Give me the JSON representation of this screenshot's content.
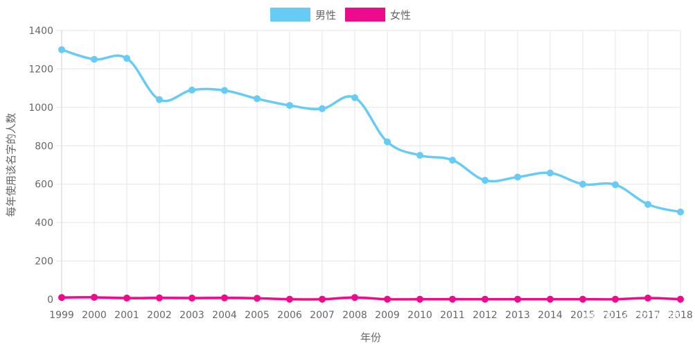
{
  "chart_data": {
    "type": "line",
    "title": "",
    "xlabel": "年份",
    "ylabel": "每年使用该名字的人数",
    "categories": [
      "1999",
      "2000",
      "2001",
      "2002",
      "2003",
      "2004",
      "2005",
      "2006",
      "2007",
      "2008",
      "2009",
      "2010",
      "2011",
      "2012",
      "2013",
      "2014",
      "2015",
      "2016",
      "2017",
      "2018"
    ],
    "ylim": [
      0,
      1400
    ],
    "yticks": [
      0,
      200,
      400,
      600,
      800,
      1000,
      1200,
      1400
    ],
    "grid": true,
    "legend_position": "top-center",
    "series": [
      {
        "name": "男性",
        "color": "#66ccf5",
        "values": [
          1300,
          1250,
          1255,
          1040,
          1090,
          1088,
          1045,
          1010,
          993,
          1050,
          820,
          750,
          725,
          620,
          637,
          658,
          600,
          597,
          495,
          455
        ]
      },
      {
        "name": "女性",
        "color": "#ee0a8c",
        "values": [
          10,
          11,
          7,
          8,
          7,
          8,
          6,
          1,
          1,
          10,
          1,
          1,
          1,
          1,
          1,
          1,
          1,
          1,
          7,
          1
        ]
      }
    ]
  },
  "watermark": "知乎 @名小萌"
}
